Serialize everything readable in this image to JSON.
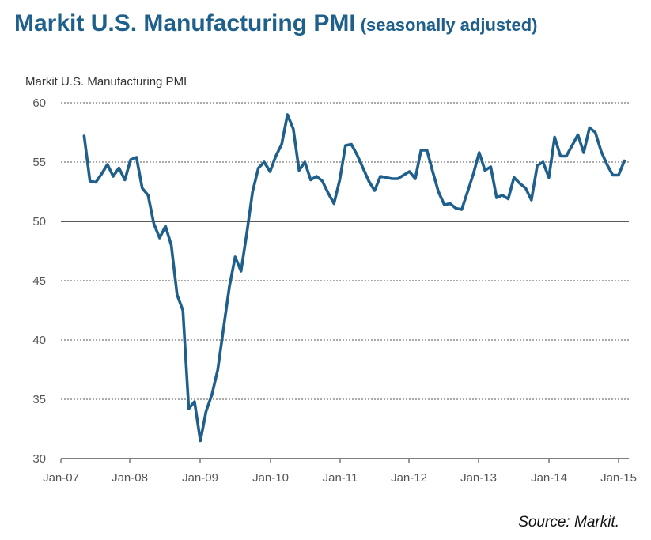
{
  "page": {
    "title_main": "Markit U.S. Manufacturing PMI",
    "title_sub": "(seasonally adjusted)",
    "source": "Source: Markit."
  },
  "chart_data": {
    "type": "line",
    "title": "",
    "ylabel": "Markit U.S. Manufacturing  PMI",
    "xlabel": "",
    "ylim": [
      30,
      60
    ],
    "y_ticks": [
      30,
      35,
      40,
      45,
      50,
      55,
      60
    ],
    "x_tick_labels": [
      "Jan-07",
      "Jan-08",
      "Jan-09",
      "Jan-10",
      "Jan-11",
      "Jan-12",
      "Jan-13",
      "Jan-14",
      "Jan-15"
    ],
    "grid": "horizontal dotted",
    "line_color": "#1f5f8b",
    "series": [
      {
        "x_start": "May-07",
        "values": [
          57.2,
          53.4,
          53.3,
          54.0,
          54.8,
          53.8,
          54.5,
          53.5,
          55.2,
          55.4,
          52.8,
          52.2,
          49.8,
          48.6,
          49.6,
          48.0,
          43.8,
          42.5,
          34.2,
          34.8,
          31.5,
          34.0,
          35.4,
          37.5,
          41.0,
          44.5,
          47.0,
          45.8,
          49.0,
          52.5,
          54.5,
          55.0,
          54.2,
          55.5,
          56.5,
          59.0,
          57.8,
          54.3,
          55.0,
          53.5,
          53.8,
          53.4,
          52.4,
          51.5,
          53.5,
          56.4,
          56.5,
          55.6,
          54.5,
          53.4,
          52.6,
          53.8,
          53.7,
          53.6,
          53.6,
          53.9,
          54.2,
          53.6,
          56.0,
          56.0,
          54.2,
          52.5,
          51.4,
          51.5,
          51.1,
          51.0,
          52.5,
          54.0,
          55.8,
          54.3,
          54.6,
          52.0,
          52.2,
          51.9,
          53.7,
          53.2,
          52.8,
          51.8,
          54.7,
          55.0,
          53.7,
          57.1,
          55.5,
          55.5,
          56.4,
          57.3,
          55.8,
          57.9,
          57.5,
          55.9,
          54.8,
          53.9,
          53.9,
          55.1
        ]
      }
    ]
  }
}
